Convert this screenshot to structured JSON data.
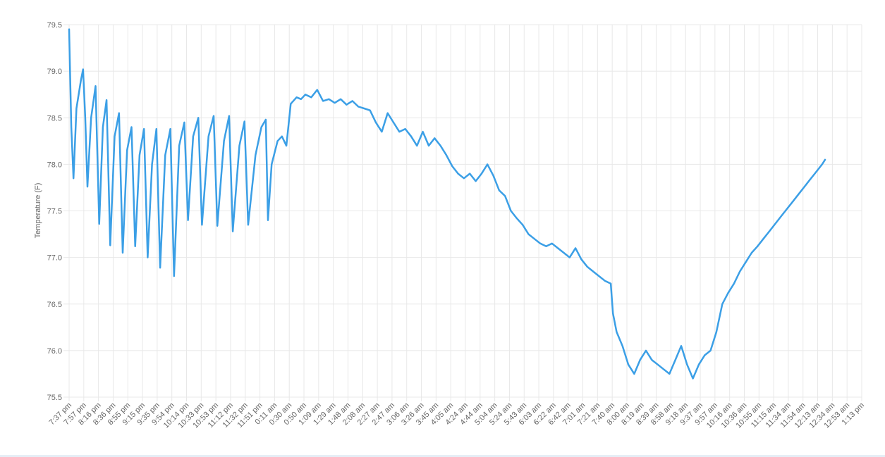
{
  "chart_data": {
    "type": "line",
    "ylabel": "Temperature (F)",
    "xlabel": "",
    "ylim": [
      75.5,
      79.5
    ],
    "y_ticks": [
      75.5,
      76.0,
      76.5,
      77.0,
      77.5,
      78.0,
      78.5,
      79.0,
      79.5
    ],
    "x_tick_labels": [
      "7:37 pm",
      "7:57 pm",
      "8:16 pm",
      "8:36 pm",
      "8:55 pm",
      "9:15 pm",
      "9:35 pm",
      "9:54 pm",
      "10:14 pm",
      "10:33 pm",
      "10:53 pm",
      "11:12 pm",
      "11:32 pm",
      "11:51 pm",
      "0:11 am",
      "0:30 am",
      "0:50 am",
      "1:09 am",
      "1:29 am",
      "1:48 am",
      "2:08 am",
      "2:27 am",
      "2:47 am",
      "3:06 am",
      "3:26 am",
      "3:45 am",
      "4:05 am",
      "4:24 am",
      "4:44 am",
      "5:04 am",
      "5:24 am",
      "5:43 am",
      "6:03 am",
      "6:22 am",
      "6:42 am",
      "7:01 am",
      "7:21 am",
      "7:40 am",
      "8:00 am",
      "8:19 am",
      "8:39 am",
      "8:58 am",
      "9:18 am",
      "9:37 am",
      "9:57 am",
      "10:16 am",
      "10:36 am",
      "10:55 am",
      "11:15 am",
      "11:34 am",
      "11:54 am",
      "12:13 am",
      "12:34 am",
      "12:53 am",
      "1:13 pm"
    ],
    "grid": true,
    "series": [
      {
        "color": "#3b9fe6",
        "points": [
          [
            0.0,
            79.45
          ],
          [
            0.15,
            78.4
          ],
          [
            0.3,
            77.85
          ],
          [
            0.5,
            78.6
          ],
          [
            0.8,
            78.9
          ],
          [
            0.95,
            79.02
          ],
          [
            1.1,
            78.5
          ],
          [
            1.25,
            77.76
          ],
          [
            1.5,
            78.5
          ],
          [
            1.8,
            78.84
          ],
          [
            2.05,
            77.36
          ],
          [
            2.3,
            78.4
          ],
          [
            2.55,
            78.69
          ],
          [
            2.8,
            77.13
          ],
          [
            3.1,
            78.3
          ],
          [
            3.4,
            78.55
          ],
          [
            3.65,
            77.05
          ],
          [
            3.95,
            78.15
          ],
          [
            4.25,
            78.4
          ],
          [
            4.5,
            77.12
          ],
          [
            4.8,
            78.1
          ],
          [
            5.1,
            78.38
          ],
          [
            5.35,
            77.0
          ],
          [
            5.65,
            78.0
          ],
          [
            5.95,
            78.38
          ],
          [
            6.2,
            76.89
          ],
          [
            6.55,
            78.1
          ],
          [
            6.9,
            78.38
          ],
          [
            7.15,
            76.8
          ],
          [
            7.5,
            78.2
          ],
          [
            7.85,
            78.45
          ],
          [
            8.1,
            77.4
          ],
          [
            8.45,
            78.3
          ],
          [
            8.8,
            78.5
          ],
          [
            9.05,
            77.35
          ],
          [
            9.5,
            78.3
          ],
          [
            9.85,
            78.52
          ],
          [
            10.1,
            77.34
          ],
          [
            10.55,
            78.25
          ],
          [
            10.9,
            78.52
          ],
          [
            11.15,
            77.28
          ],
          [
            11.6,
            78.2
          ],
          [
            11.95,
            78.46
          ],
          [
            12.2,
            77.35
          ],
          [
            12.7,
            78.1
          ],
          [
            13.1,
            78.4
          ],
          [
            13.4,
            78.48
          ],
          [
            13.55,
            77.4
          ],
          [
            13.8,
            78.0
          ],
          [
            14.2,
            78.25
          ],
          [
            14.5,
            78.3
          ],
          [
            14.8,
            78.2
          ],
          [
            15.1,
            78.65
          ],
          [
            15.5,
            78.72
          ],
          [
            15.8,
            78.7
          ],
          [
            16.1,
            78.75
          ],
          [
            16.5,
            78.72
          ],
          [
            16.9,
            78.8
          ],
          [
            17.3,
            78.68
          ],
          [
            17.7,
            78.7
          ],
          [
            18.1,
            78.66
          ],
          [
            18.5,
            78.7
          ],
          [
            18.9,
            78.64
          ],
          [
            19.3,
            78.68
          ],
          [
            19.7,
            78.62
          ],
          [
            20.1,
            78.6
          ],
          [
            20.5,
            78.58
          ],
          [
            20.9,
            78.45
          ],
          [
            21.3,
            78.35
          ],
          [
            21.7,
            78.55
          ],
          [
            22.1,
            78.45
          ],
          [
            22.5,
            78.35
          ],
          [
            22.9,
            78.38
          ],
          [
            23.3,
            78.3
          ],
          [
            23.7,
            78.2
          ],
          [
            24.1,
            78.35
          ],
          [
            24.5,
            78.2
          ],
          [
            24.9,
            78.28
          ],
          [
            25.3,
            78.2
          ],
          [
            25.7,
            78.1
          ],
          [
            26.1,
            77.98
          ],
          [
            26.5,
            77.9
          ],
          [
            26.9,
            77.85
          ],
          [
            27.3,
            77.9
          ],
          [
            27.7,
            77.82
          ],
          [
            28.1,
            77.9
          ],
          [
            28.5,
            78.0
          ],
          [
            28.9,
            77.88
          ],
          [
            29.3,
            77.72
          ],
          [
            29.7,
            77.66
          ],
          [
            30.1,
            77.5
          ],
          [
            30.5,
            77.42
          ],
          [
            30.9,
            77.35
          ],
          [
            31.3,
            77.25
          ],
          [
            31.7,
            77.2
          ],
          [
            32.1,
            77.15
          ],
          [
            32.5,
            77.12
          ],
          [
            32.9,
            77.15
          ],
          [
            33.3,
            77.1
          ],
          [
            33.7,
            77.05
          ],
          [
            34.1,
            77.0
          ],
          [
            34.5,
            77.1
          ],
          [
            34.9,
            76.98
          ],
          [
            35.3,
            76.9
          ],
          [
            35.7,
            76.85
          ],
          [
            36.1,
            76.8
          ],
          [
            36.5,
            76.75
          ],
          [
            36.9,
            76.72
          ],
          [
            37.05,
            76.4
          ],
          [
            37.3,
            76.2
          ],
          [
            37.7,
            76.05
          ],
          [
            38.1,
            75.85
          ],
          [
            38.5,
            75.75
          ],
          [
            38.9,
            75.9
          ],
          [
            39.3,
            76.0
          ],
          [
            39.7,
            75.9
          ],
          [
            40.1,
            75.85
          ],
          [
            40.5,
            75.8
          ],
          [
            40.9,
            75.75
          ],
          [
            41.3,
            75.9
          ],
          [
            41.7,
            76.05
          ],
          [
            42.1,
            75.85
          ],
          [
            42.5,
            75.7
          ],
          [
            42.9,
            75.85
          ],
          [
            43.3,
            75.95
          ],
          [
            43.7,
            76.0
          ],
          [
            44.1,
            76.2
          ],
          [
            44.5,
            76.5
          ],
          [
            44.9,
            76.62
          ],
          [
            45.3,
            76.72
          ],
          [
            45.7,
            76.85
          ],
          [
            46.1,
            76.95
          ],
          [
            46.5,
            77.05
          ],
          [
            46.9,
            77.12
          ],
          [
            47.3,
            77.2
          ],
          [
            47.7,
            77.28
          ],
          [
            48.1,
            77.36
          ],
          [
            48.5,
            77.44
          ],
          [
            48.9,
            77.52
          ],
          [
            49.3,
            77.6
          ],
          [
            49.7,
            77.68
          ],
          [
            50.1,
            77.76
          ],
          [
            50.5,
            77.84
          ],
          [
            50.9,
            77.92
          ],
          [
            51.3,
            78.0
          ],
          [
            51.5,
            78.05
          ]
        ]
      }
    ]
  }
}
